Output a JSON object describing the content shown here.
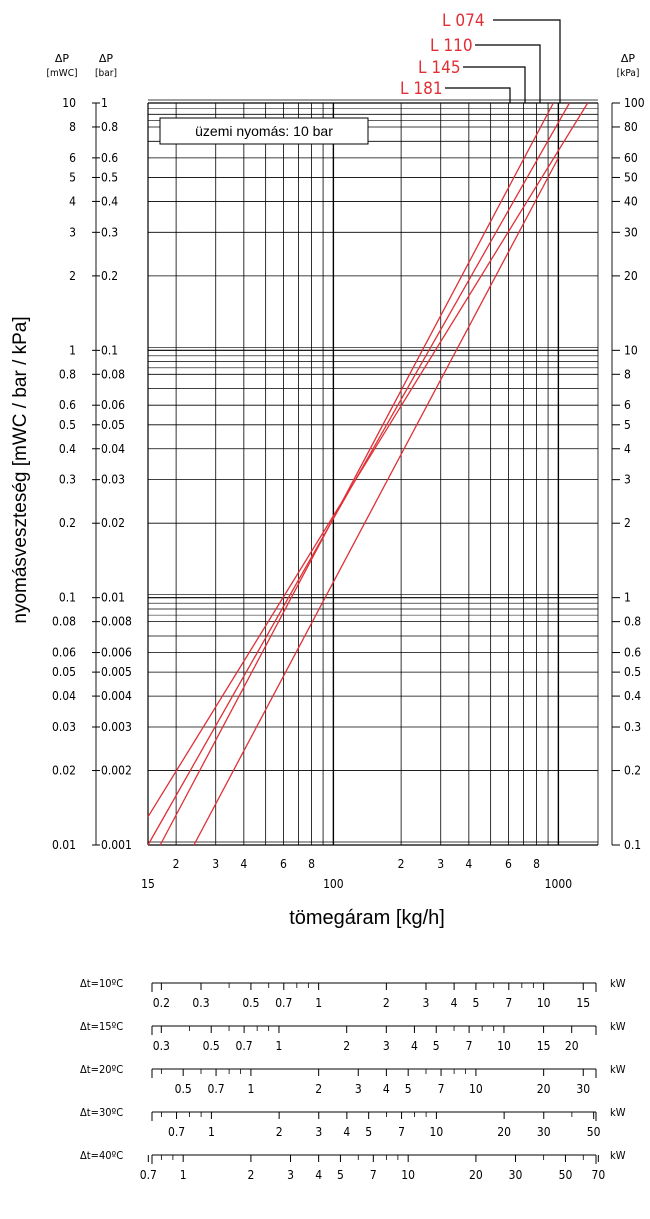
{
  "chart_data": {
    "type": "line",
    "x_scale": "log",
    "y_scale": "log",
    "xlim": [
      15,
      1500
    ],
    "ylim": [
      0.001,
      0.1
    ],
    "grid": true,
    "xlabel": "tömegáram [kg/h]",
    "ylabel": "nyomásveszteség [mWC / bar / kPa]",
    "x_tick_labels": [
      {
        "v": 15,
        "t": "15"
      },
      {
        "v": 20,
        "t": "2"
      },
      {
        "v": 30,
        "t": "3"
      },
      {
        "v": 40,
        "t": "4"
      },
      {
        "v": 60,
        "t": "6"
      },
      {
        "v": 80,
        "t": "8"
      },
      {
        "v": 100,
        "t": "100"
      },
      {
        "v": 200,
        "t": "2"
      },
      {
        "v": 300,
        "t": "3"
      },
      {
        "v": 400,
        "t": "4"
      },
      {
        "v": 600,
        "t": "6"
      },
      {
        "v": 800,
        "t": "8"
      },
      {
        "v": 1000,
        "t": "1000"
      }
    ],
    "y_axes": [
      {
        "unit_top": "ΔP",
        "unit_bottom": "[mWC]",
        "side": "left-outer",
        "ticks": [
          {
            "v": 0.1,
            "t": "10"
          },
          {
            "v": 0.08,
            "t": "8"
          },
          {
            "v": 0.06,
            "t": "6"
          },
          {
            "v": 0.05,
            "t": "5"
          },
          {
            "v": 0.04,
            "t": "4"
          },
          {
            "v": 0.03,
            "t": "3"
          },
          {
            "v": 0.02,
            "t": "2"
          },
          {
            "v": 0.01,
            "t": "1"
          },
          {
            "v": 0.008,
            "t": "0.8"
          },
          {
            "v": 0.006,
            "t": "0.6"
          },
          {
            "v": 0.005,
            "t": "0.5"
          },
          {
            "v": 0.004,
            "t": "0.4"
          },
          {
            "v": 0.003,
            "t": "0.3"
          },
          {
            "v": 0.002,
            "t": "0.2"
          },
          {
            "v": 0.001,
            "t": "0.1"
          },
          {
            "v": 0.0008,
            "t": "0.08"
          },
          {
            "v": 0.0006,
            "t": "0.06"
          },
          {
            "v": 0.0005,
            "t": "0.05"
          },
          {
            "v": 0.0004,
            "t": "0.04"
          },
          {
            "v": 0.0003,
            "t": "0.03"
          },
          {
            "v": 0.0002,
            "t": "0.02"
          },
          {
            "v": 0.0001,
            "t": "0.01"
          }
        ]
      },
      {
        "unit_top": "ΔP",
        "unit_bottom": "[bar]",
        "side": "left-inner",
        "ticks": [
          {
            "v": 0.1,
            "t": "1"
          },
          {
            "v": 0.08,
            "t": "0.8"
          },
          {
            "v": 0.06,
            "t": "0.6"
          },
          {
            "v": 0.05,
            "t": "0.5"
          },
          {
            "v": 0.04,
            "t": "0.4"
          },
          {
            "v": 0.03,
            "t": "0.3"
          },
          {
            "v": 0.02,
            "t": "0.2"
          },
          {
            "v": 0.01,
            "t": "0.1"
          },
          {
            "v": 0.008,
            "t": "0.08"
          },
          {
            "v": 0.006,
            "t": "0.06"
          },
          {
            "v": 0.005,
            "t": "0.05"
          },
          {
            "v": 0.004,
            "t": "0.04"
          },
          {
            "v": 0.003,
            "t": "0.03"
          },
          {
            "v": 0.002,
            "t": "0.02"
          },
          {
            "v": 0.001,
            "t": "0.01"
          },
          {
            "v": 0.0008,
            "t": "0.008"
          },
          {
            "v": 0.0006,
            "t": "0.006"
          },
          {
            "v": 0.0005,
            "t": "0.005"
          },
          {
            "v": 0.0004,
            "t": "0.004"
          },
          {
            "v": 0.0003,
            "t": "0.003"
          },
          {
            "v": 0.0002,
            "t": "0.002"
          },
          {
            "v": 0.0001,
            "t": "0.001"
          }
        ]
      },
      {
        "unit_top": "ΔP",
        "unit_bottom": "[kPa]",
        "side": "right",
        "ticks": [
          {
            "v": 0.1,
            "t": "100"
          },
          {
            "v": 0.08,
            "t": "80"
          },
          {
            "v": 0.06,
            "t": "60"
          },
          {
            "v": 0.05,
            "t": "50"
          },
          {
            "v": 0.04,
            "t": "40"
          },
          {
            "v": 0.03,
            "t": "30"
          },
          {
            "v": 0.02,
            "t": "20"
          },
          {
            "v": 0.01,
            "t": "10"
          },
          {
            "v": 0.008,
            "t": "8"
          },
          {
            "v": 0.006,
            "t": "6"
          },
          {
            "v": 0.005,
            "t": "5"
          },
          {
            "v": 0.004,
            "t": "4"
          },
          {
            "v": 0.003,
            "t": "3"
          },
          {
            "v": 0.002,
            "t": "2"
          },
          {
            "v": 0.001,
            "t": "1"
          },
          {
            "v": 0.0008,
            "t": "0.8"
          },
          {
            "v": 0.0006,
            "t": "0.6"
          },
          {
            "v": 0.0005,
            "t": "0.5"
          },
          {
            "v": 0.0004,
            "t": "0.4"
          },
          {
            "v": 0.0003,
            "t": "0.3"
          },
          {
            "v": 0.0002,
            "t": "0.2"
          },
          {
            "v": 0.0001,
            "t": "0.1"
          }
        ]
      }
    ],
    "annotation": "üzemi nyomás: 10 bar",
    "series": [
      {
        "name": "L 074",
        "x": [
          15,
          1350
        ],
        "y": [
          0.00013,
          0.1
        ]
      },
      {
        "name": "L 110",
        "x": [
          15,
          1120
        ],
        "y": [
          0.0001,
          0.1
        ]
      },
      {
        "name": "L 145",
        "x": [
          17,
          950
        ],
        "y": [
          0.0001,
          0.1
        ]
      },
      {
        "name": "L 181",
        "x": [
          24,
          1000
        ],
        "y": [
          0.0001,
          0.06
        ]
      }
    ],
    "series_color": "#e03036",
    "power_scales": [
      {
        "label": "Δt=10ºC",
        "unit": "kW",
        "kg_per_kw": 86,
        "labels": [
          "0.2",
          "0.3",
          "0.5",
          "0.7",
          "1",
          "2",
          "3",
          "4",
          "5",
          "7",
          "10",
          "15"
        ],
        "minor": [
          0.4,
          0.6,
          0.8,
          0.9,
          6,
          8,
          9
        ]
      },
      {
        "label": "Δt=15ºC",
        "unit": "kW",
        "kg_per_kw": 57.3,
        "labels": [
          "0.3",
          "0.5",
          "0.7",
          "1",
          "2",
          "3",
          "4",
          "5",
          "7",
          "10",
          "15",
          "20"
        ],
        "minor": [
          0.4,
          0.6,
          0.8,
          0.9,
          6,
          8,
          9
        ]
      },
      {
        "label": "Δt=20ºC",
        "unit": "kW",
        "kg_per_kw": 43,
        "labels": [
          "0.5",
          "0.7",
          "1",
          "2",
          "3",
          "4",
          "5",
          "7",
          "10",
          "20",
          "30"
        ],
        "minor": [
          0.4,
          0.6,
          0.8,
          0.9,
          6,
          8,
          9
        ]
      },
      {
        "label": "Δt=30ºC",
        "unit": "kW",
        "kg_per_kw": 28.7,
        "labels": [
          "0.7",
          "1",
          "2",
          "3",
          "4",
          "5",
          "7",
          "10",
          "20",
          "30",
          "50"
        ],
        "minor": [
          0.6,
          0.8,
          0.9,
          6,
          8,
          9,
          40
        ]
      },
      {
        "label": "Δt=40ºC",
        "unit": "kW",
        "kg_per_kw": 21.5,
        "labels": [
          "0.7",
          "1",
          "2",
          "3",
          "4",
          "5",
          "7",
          "10",
          "20",
          "30",
          "50",
          "70"
        ],
        "minor": [
          0.8,
          0.9,
          6,
          8,
          9,
          40,
          60
        ]
      }
    ]
  }
}
